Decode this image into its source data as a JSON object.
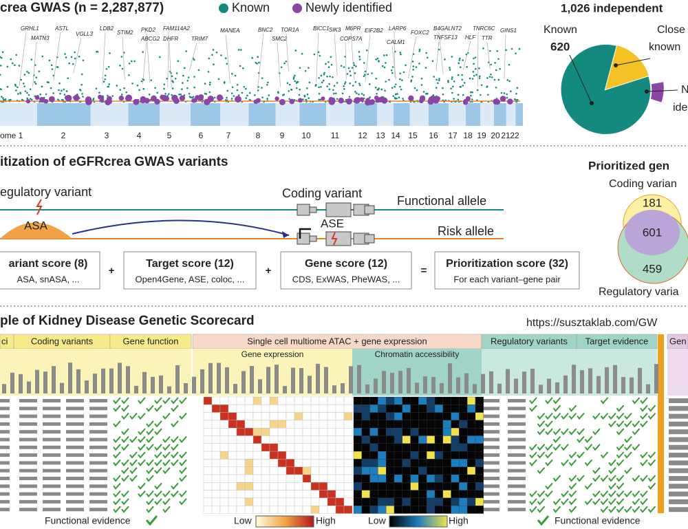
{
  "panel_a": {
    "title": "crea GWAS (n = 2,287,877)",
    "legend": [
      "Known",
      "Newly identified"
    ],
    "genes": [
      "GRHL1",
      "MATN3",
      "ASTL",
      "VGLL3",
      "LDB2",
      "STIM2",
      "PKD2",
      "ABCG2",
      "FAM114A2",
      "DHFR",
      "TRIM7",
      "MANEA",
      "BNC2",
      "SMC2",
      "TOR1A",
      "BICC1",
      "SIK3",
      "M6PR",
      "COPS7A",
      "EIF2B2",
      "LARP6",
      "CALM1",
      "FOXC2",
      "B4GALNT2",
      "TNFSF13",
      "TNRC6C",
      "HLF",
      "TTR",
      "GINS1"
    ],
    "axis_label": "ome",
    "chromosomes": [
      "1",
      "2",
      "3",
      "4",
      "5",
      "6",
      "7",
      "8",
      "9",
      "10",
      "11",
      "12",
      "13",
      "14",
      "15",
      "16",
      "17",
      "18",
      "19",
      "20",
      "21",
      "22"
    ]
  },
  "pie": {
    "title": "1,026 independent",
    "known_label": "Known",
    "known_count": "620",
    "closest_label": [
      "Close",
      "known"
    ],
    "new_label": [
      "N",
      "ide"
    ]
  },
  "panel_b": {
    "title": "itization of eGFRcrea GWAS variants",
    "regulatory": "egulatory variant",
    "coding": "Coding variant",
    "functional": "Functional allele",
    "risk": "Risk allele",
    "asa": "ASA",
    "ase": "ASE",
    "scores": [
      {
        "title": "ariant score (8)",
        "detail": "ASA, snASA, ..."
      },
      {
        "title": "Target score (12)",
        "detail": "Open4Gene, ASE, coloc, ..."
      },
      {
        "title": "Gene score (12)",
        "detail": "CDS, ExWAS, PheWAS, ..."
      },
      {
        "title": "Prioritization score (32)",
        "detail": "For each variant–gene pair"
      }
    ],
    "operators": [
      "+",
      "+",
      "="
    ]
  },
  "venn": {
    "title": "Prioritized gen",
    "top_label": "Coding varian",
    "bottom_label": "Regulatory varia",
    "counts": [
      "181",
      "601",
      "459"
    ]
  },
  "panel_c": {
    "title": "ple of Kidney Disease Genetic Scorecard",
    "url": "https://susztaklab.com/GW",
    "headers": [
      "ci",
      "Coding variants",
      "Gene function",
      "Single cell multiome ATAC + gene expression",
      "Regulatory variants",
      "Target evidence",
      "Gen"
    ],
    "subheaders": [
      "Gene expression",
      "Chromatin accessibility"
    ],
    "footer": {
      "functional_left": "Functional evidence",
      "low1": "Low",
      "high1": "High",
      "low2": "Low",
      "high2": "High",
      "functional_right": "Functional evidence"
    }
  }
}
